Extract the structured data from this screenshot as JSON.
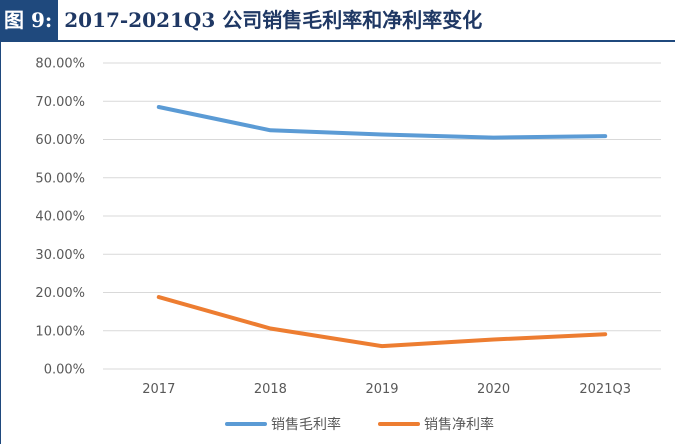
{
  "figure": {
    "label": "图 9:",
    "title": "2017-2021Q3 公司销售毛利率和净利率变化"
  },
  "colors": {
    "title_bg": "#1f497d",
    "title_text": "#1f3864",
    "series_1": "#5b9bd5",
    "series_2": "#ed7d31",
    "gridline": "#d9d9d9",
    "axis_text": "#595959"
  },
  "chart_data": {
    "type": "line",
    "categories": [
      "2017",
      "2018",
      "2019",
      "2020",
      "2021Q3"
    ],
    "series": [
      {
        "name": "销售毛利率",
        "values": [
          68.5,
          62.4,
          61.3,
          60.5,
          60.9
        ]
      },
      {
        "name": "销售净利率",
        "values": [
          18.8,
          10.6,
          6.0,
          7.7,
          9.1
        ]
      }
    ],
    "ylim": [
      0,
      80
    ],
    "yticks": [
      "0.00%",
      "10.00%",
      "20.00%",
      "30.00%",
      "40.00%",
      "50.00%",
      "60.00%",
      "70.00%",
      "80.00%"
    ],
    "grid": true,
    "legend_position": "bottom",
    "title": "",
    "xlabel": "",
    "ylabel": ""
  }
}
